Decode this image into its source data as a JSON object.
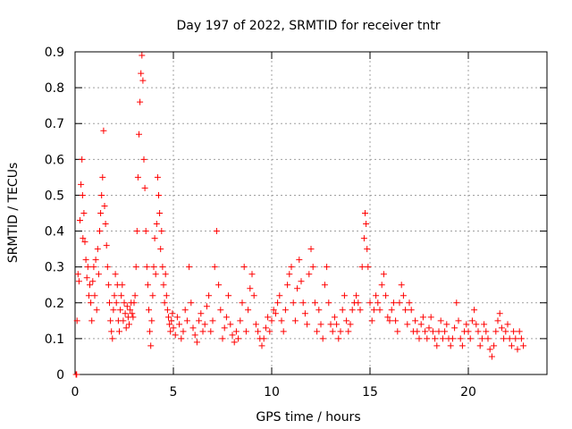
{
  "chart_data": {
    "type": "scatter",
    "title": "Day 197 of 2022, SRMTID for receiver tntr",
    "xlabel": "GPS time / hours",
    "ylabel": "SRMTID / TECUs",
    "xlim": [
      0,
      24
    ],
    "ylim": [
      0,
      0.9
    ],
    "xticks": [
      0,
      5,
      10,
      15,
      20
    ],
    "xtick_labels": [
      "0",
      "5",
      "10",
      "15",
      "20"
    ],
    "yticks": [
      0,
      0.1,
      0.2,
      0.3,
      0.4,
      0.5,
      0.6,
      0.7,
      0.8,
      0.9
    ],
    "ytick_labels": [
      "0",
      "0.1",
      "0.2",
      "0.3",
      "0.4",
      "0.5",
      "0.6",
      "0.7",
      "0.8",
      "0.9"
    ],
    "grid": true,
    "marker": "+",
    "color": "#ff0000",
    "series": [
      {
        "name": "SRMTID",
        "points": [
          [
            0.05,
            0.0
          ],
          [
            0.08,
            0.0
          ],
          [
            0.1,
            0.15
          ],
          [
            0.15,
            0.28
          ],
          [
            0.2,
            0.26
          ],
          [
            0.25,
            0.43
          ],
          [
            0.3,
            0.53
          ],
          [
            0.35,
            0.6
          ],
          [
            0.38,
            0.5
          ],
          [
            0.4,
            0.38
          ],
          [
            0.45,
            0.45
          ],
          [
            0.5,
            0.37
          ],
          [
            0.55,
            0.32
          ],
          [
            0.6,
            0.27
          ],
          [
            0.65,
            0.3
          ],
          [
            0.7,
            0.22
          ],
          [
            0.75,
            0.25
          ],
          [
            0.8,
            0.2
          ],
          [
            0.85,
            0.15
          ],
          [
            0.9,
            0.26
          ],
          [
            0.95,
            0.3
          ],
          [
            1.0,
            0.22
          ],
          [
            1.05,
            0.32
          ],
          [
            1.1,
            0.18
          ],
          [
            1.15,
            0.35
          ],
          [
            1.2,
            0.28
          ],
          [
            1.25,
            0.4
          ],
          [
            1.3,
            0.45
          ],
          [
            1.35,
            0.5
          ],
          [
            1.4,
            0.55
          ],
          [
            1.45,
            0.68
          ],
          [
            1.5,
            0.47
          ],
          [
            1.55,
            0.42
          ],
          [
            1.6,
            0.36
          ],
          [
            1.65,
            0.3
          ],
          [
            1.7,
            0.25
          ],
          [
            1.75,
            0.2
          ],
          [
            1.8,
            0.15
          ],
          [
            1.85,
            0.12
          ],
          [
            1.9,
            0.1
          ],
          [
            1.95,
            0.18
          ],
          [
            2.0,
            0.22
          ],
          [
            2.05,
            0.28
          ],
          [
            2.1,
            0.2
          ],
          [
            2.15,
            0.25
          ],
          [
            2.2,
            0.15
          ],
          [
            2.25,
            0.12
          ],
          [
            2.3,
            0.18
          ],
          [
            2.35,
            0.22
          ],
          [
            2.4,
            0.25
          ],
          [
            2.45,
            0.15
          ],
          [
            2.5,
            0.2
          ],
          [
            2.55,
            0.17
          ],
          [
            2.6,
            0.13
          ],
          [
            2.65,
            0.19
          ],
          [
            2.7,
            0.16
          ],
          [
            2.75,
            0.14
          ],
          [
            2.8,
            0.18
          ],
          [
            2.85,
            0.2
          ],
          [
            2.9,
            0.17
          ],
          [
            2.95,
            0.16
          ],
          [
            3.0,
            0.2
          ],
          [
            3.05,
            0.22
          ],
          [
            3.1,
            0.3
          ],
          [
            3.15,
            0.4
          ],
          [
            3.2,
            0.55
          ],
          [
            3.25,
            0.67
          ],
          [
            3.3,
            0.76
          ],
          [
            3.35,
            0.84
          ],
          [
            3.4,
            0.89
          ],
          [
            3.45,
            0.82
          ],
          [
            3.5,
            0.6
          ],
          [
            3.55,
            0.52
          ],
          [
            3.6,
            0.4
          ],
          [
            3.65,
            0.3
          ],
          [
            3.7,
            0.25
          ],
          [
            3.75,
            0.18
          ],
          [
            3.8,
            0.12
          ],
          [
            3.85,
            0.08
          ],
          [
            3.9,
            0.15
          ],
          [
            3.95,
            0.22
          ],
          [
            4.0,
            0.3
          ],
          [
            4.05,
            0.38
          ],
          [
            4.1,
            0.28
          ],
          [
            4.15,
            0.42
          ],
          [
            4.2,
            0.55
          ],
          [
            4.25,
            0.5
          ],
          [
            4.3,
            0.45
          ],
          [
            4.35,
            0.35
          ],
          [
            4.4,
            0.4
          ],
          [
            4.45,
            0.3
          ],
          [
            4.5,
            0.25
          ],
          [
            4.55,
            0.2
          ],
          [
            4.6,
            0.28
          ],
          [
            4.65,
            0.22
          ],
          [
            4.7,
            0.18
          ],
          [
            4.75,
            0.16
          ],
          [
            4.8,
            0.14
          ],
          [
            4.85,
            0.12
          ],
          [
            4.9,
            0.15
          ],
          [
            4.95,
            0.17
          ],
          [
            5.0,
            0.13
          ],
          [
            5.1,
            0.11
          ],
          [
            5.2,
            0.16
          ],
          [
            5.3,
            0.14
          ],
          [
            5.4,
            0.1
          ],
          [
            5.5,
            0.12
          ],
          [
            5.6,
            0.18
          ],
          [
            5.7,
            0.15
          ],
          [
            5.8,
            0.3
          ],
          [
            5.9,
            0.2
          ],
          [
            6.0,
            0.13
          ],
          [
            6.1,
            0.11
          ],
          [
            6.2,
            0.09
          ],
          [
            6.3,
            0.15
          ],
          [
            6.4,
            0.17
          ],
          [
            6.5,
            0.12
          ],
          [
            6.6,
            0.14
          ],
          [
            6.7,
            0.19
          ],
          [
            6.8,
            0.22
          ],
          [
            6.9,
            0.12
          ],
          [
            7.0,
            0.15
          ],
          [
            7.1,
            0.3
          ],
          [
            7.2,
            0.4
          ],
          [
            7.3,
            0.25
          ],
          [
            7.4,
            0.18
          ],
          [
            7.5,
            0.1
          ],
          [
            7.6,
            0.13
          ],
          [
            7.7,
            0.16
          ],
          [
            7.8,
            0.22
          ],
          [
            7.9,
            0.14
          ],
          [
            8.0,
            0.11
          ],
          [
            8.1,
            0.09
          ],
          [
            8.2,
            0.12
          ],
          [
            8.3,
            0.1
          ],
          [
            8.4,
            0.15
          ],
          [
            8.5,
            0.2
          ],
          [
            8.6,
            0.3
          ],
          [
            8.7,
            0.12
          ],
          [
            8.8,
            0.18
          ],
          [
            8.9,
            0.24
          ],
          [
            9.0,
            0.28
          ],
          [
            9.1,
            0.22
          ],
          [
            9.2,
            0.14
          ],
          [
            9.3,
            0.12
          ],
          [
            9.4,
            0.1
          ],
          [
            9.5,
            0.08
          ],
          [
            9.6,
            0.1
          ],
          [
            9.7,
            0.13
          ],
          [
            9.8,
            0.16
          ],
          [
            9.9,
            0.12
          ],
          [
            10.0,
            0.15
          ],
          [
            10.1,
            0.18
          ],
          [
            10.2,
            0.17
          ],
          [
            10.3,
            0.2
          ],
          [
            10.4,
            0.22
          ],
          [
            10.5,
            0.15
          ],
          [
            10.6,
            0.12
          ],
          [
            10.7,
            0.18
          ],
          [
            10.8,
            0.25
          ],
          [
            10.9,
            0.28
          ],
          [
            11.0,
            0.3
          ],
          [
            11.1,
            0.2
          ],
          [
            11.2,
            0.15
          ],
          [
            11.3,
            0.24
          ],
          [
            11.4,
            0.32
          ],
          [
            11.5,
            0.26
          ],
          [
            11.6,
            0.2
          ],
          [
            11.7,
            0.17
          ],
          [
            11.8,
            0.14
          ],
          [
            11.9,
            0.28
          ],
          [
            12.0,
            0.35
          ],
          [
            12.1,
            0.3
          ],
          [
            12.2,
            0.2
          ],
          [
            12.3,
            0.12
          ],
          [
            12.4,
            0.18
          ],
          [
            12.5,
            0.14
          ],
          [
            12.6,
            0.1
          ],
          [
            12.7,
            0.25
          ],
          [
            12.8,
            0.3
          ],
          [
            12.9,
            0.2
          ],
          [
            13.0,
            0.14
          ],
          [
            13.1,
            0.12
          ],
          [
            13.2,
            0.16
          ],
          [
            13.3,
            0.14
          ],
          [
            13.4,
            0.1
          ],
          [
            13.5,
            0.12
          ],
          [
            13.6,
            0.18
          ],
          [
            13.7,
            0.22
          ],
          [
            13.8,
            0.15
          ],
          [
            13.9,
            0.12
          ],
          [
            14.0,
            0.14
          ],
          [
            14.1,
            0.18
          ],
          [
            14.2,
            0.2
          ],
          [
            14.3,
            0.22
          ],
          [
            14.4,
            0.2
          ],
          [
            14.5,
            0.18
          ],
          [
            14.6,
            0.3
          ],
          [
            14.7,
            0.38
          ],
          [
            14.75,
            0.45
          ],
          [
            14.8,
            0.42
          ],
          [
            14.85,
            0.35
          ],
          [
            14.9,
            0.3
          ],
          [
            15.0,
            0.2
          ],
          [
            15.1,
            0.15
          ],
          [
            15.2,
            0.18
          ],
          [
            15.3,
            0.22
          ],
          [
            15.4,
            0.2
          ],
          [
            15.5,
            0.18
          ],
          [
            15.6,
            0.25
          ],
          [
            15.7,
            0.28
          ],
          [
            15.8,
            0.22
          ],
          [
            15.9,
            0.16
          ],
          [
            16.0,
            0.15
          ],
          [
            16.1,
            0.18
          ],
          [
            16.2,
            0.2
          ],
          [
            16.3,
            0.15
          ],
          [
            16.4,
            0.12
          ],
          [
            16.5,
            0.2
          ],
          [
            16.6,
            0.25
          ],
          [
            16.7,
            0.22
          ],
          [
            16.8,
            0.18
          ],
          [
            16.9,
            0.14
          ],
          [
            17.0,
            0.2
          ],
          [
            17.1,
            0.18
          ],
          [
            17.2,
            0.12
          ],
          [
            17.3,
            0.15
          ],
          [
            17.4,
            0.12
          ],
          [
            17.5,
            0.1
          ],
          [
            17.6,
            0.14
          ],
          [
            17.7,
            0.16
          ],
          [
            17.8,
            0.12
          ],
          [
            17.9,
            0.1
          ],
          [
            18.0,
            0.13
          ],
          [
            18.1,
            0.16
          ],
          [
            18.2,
            0.12
          ],
          [
            18.3,
            0.1
          ],
          [
            18.4,
            0.08
          ],
          [
            18.5,
            0.12
          ],
          [
            18.6,
            0.15
          ],
          [
            18.7,
            0.1
          ],
          [
            18.8,
            0.12
          ],
          [
            18.9,
            0.14
          ],
          [
            19.0,
            0.1
          ],
          [
            19.1,
            0.08
          ],
          [
            19.2,
            0.1
          ],
          [
            19.3,
            0.13
          ],
          [
            19.4,
            0.2
          ],
          [
            19.5,
            0.15
          ],
          [
            19.6,
            0.1
          ],
          [
            19.7,
            0.08
          ],
          [
            19.8,
            0.12
          ],
          [
            19.9,
            0.14
          ],
          [
            20.0,
            0.12
          ],
          [
            20.1,
            0.1
          ],
          [
            20.2,
            0.15
          ],
          [
            20.3,
            0.18
          ],
          [
            20.4,
            0.14
          ],
          [
            20.5,
            0.12
          ],
          [
            20.6,
            0.08
          ],
          [
            20.7,
            0.1
          ],
          [
            20.8,
            0.14
          ],
          [
            20.9,
            0.12
          ],
          [
            21.0,
            0.1
          ],
          [
            21.1,
            0.07
          ],
          [
            21.2,
            0.05
          ],
          [
            21.3,
            0.08
          ],
          [
            21.4,
            0.12
          ],
          [
            21.5,
            0.15
          ],
          [
            21.6,
            0.17
          ],
          [
            21.7,
            0.13
          ],
          [
            21.8,
            0.1
          ],
          [
            21.9,
            0.12
          ],
          [
            22.0,
            0.14
          ],
          [
            22.1,
            0.1
          ],
          [
            22.2,
            0.08
          ],
          [
            22.3,
            0.12
          ],
          [
            22.4,
            0.1
          ],
          [
            22.5,
            0.07
          ],
          [
            22.6,
            0.12
          ],
          [
            22.7,
            0.1
          ],
          [
            22.8,
            0.08
          ]
        ]
      }
    ]
  }
}
